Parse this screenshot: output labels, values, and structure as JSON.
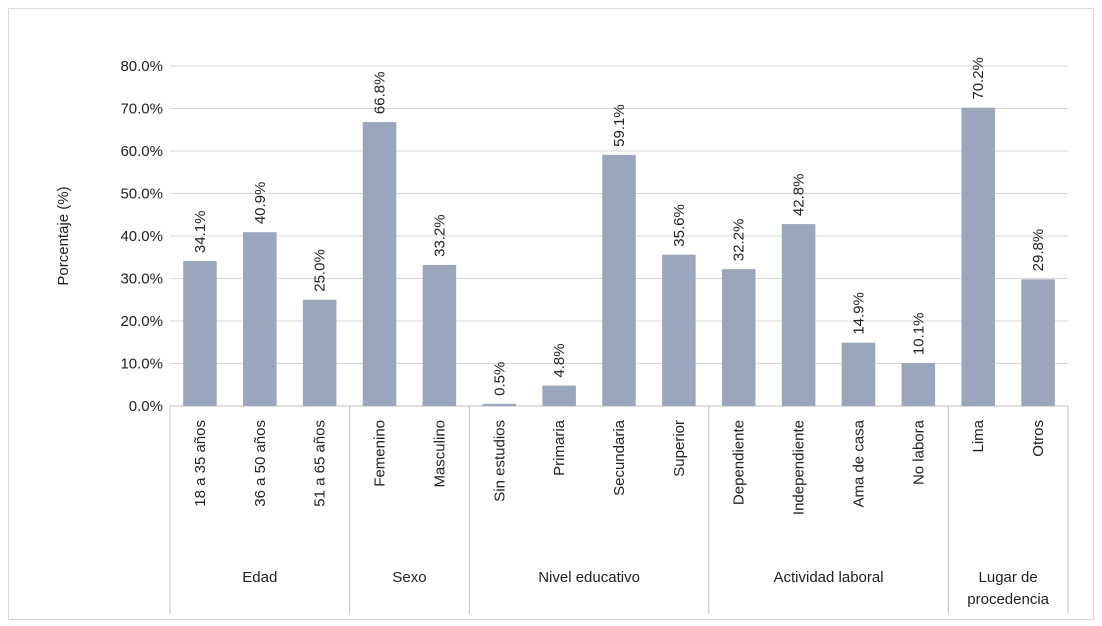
{
  "chart_data": {
    "type": "bar",
    "ylabel": "Porcentaje (%)",
    "ylim": [
      0,
      80
    ],
    "yticks": [
      "0.0%",
      "10.0%",
      "20.0%",
      "30.0%",
      "40.0%",
      "50.0%",
      "60.0%",
      "70.0%",
      "80.0%"
    ],
    "grid": true,
    "bar_color": "#9aa6bc",
    "groups": [
      {
        "name": "Edad",
        "categories": [
          "18 a 35 años",
          "36 a 50 años",
          "51 a 65 años"
        ],
        "values": [
          34.1,
          40.9,
          25.0
        ],
        "labels": [
          "34.1%",
          "40.9%",
          "25.0%"
        ]
      },
      {
        "name": "Sexo",
        "categories": [
          "Femenino",
          "Masculino"
        ],
        "values": [
          66.8,
          33.2
        ],
        "labels": [
          "66.8%",
          "33.2%"
        ]
      },
      {
        "name": "Nivel educativo",
        "categories": [
          "Sin estudios",
          "Primaria",
          "Secundaria",
          "Superior"
        ],
        "values": [
          0.5,
          4.8,
          59.1,
          35.6
        ],
        "labels": [
          "0.5%",
          "4.8%",
          "59.1%",
          "35.6%"
        ]
      },
      {
        "name": "Actividad laboral",
        "categories": [
          "Dependiente",
          "Independiente",
          "Ama de casa",
          "No labora"
        ],
        "values": [
          32.2,
          42.8,
          14.9,
          10.1
        ],
        "labels": [
          "32.2%",
          "42.8%",
          "14.9%",
          "10.1%"
        ]
      },
      {
        "name": [
          "Lugar de",
          "procedencia"
        ],
        "categories": [
          "Lima",
          "Otros"
        ],
        "values": [
          70.2,
          29.8
        ],
        "labels": [
          "70.2%",
          "29.8%"
        ]
      }
    ]
  }
}
